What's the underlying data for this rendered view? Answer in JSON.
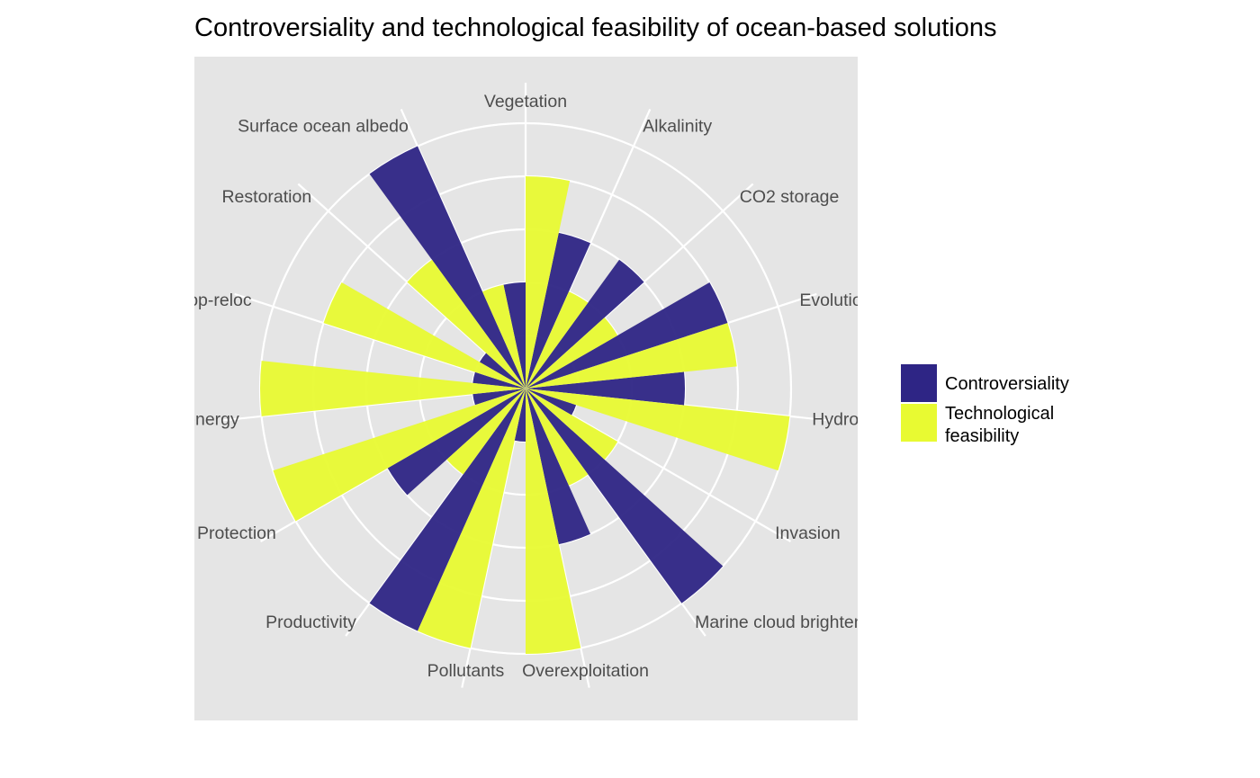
{
  "chart_data": {
    "type": "bar",
    "coord": "polar",
    "title": "Controversiality and technological feasibility of ocean-based solutions",
    "categories": [
      "Alkalinity",
      "CO2 storage",
      "Evolution",
      "Hydrology",
      "Invasion",
      "Marine cloud brightening",
      "Overexploitation",
      "Pollutants",
      "Productivity",
      "Protection",
      "Renewable energy",
      "Repop-reloc",
      "Restoration",
      "Surface ocean albedo",
      "Vegetation"
    ],
    "series": [
      {
        "name": "Controversiality",
        "color": "#2e2585",
        "values": [
          3,
          3,
          4,
          3,
          1,
          5,
          3,
          1,
          5,
          3,
          1,
          1,
          1,
          5,
          2
        ]
      },
      {
        "name": "Technological feasibility",
        "color": "#e8fa32",
        "values": [
          2,
          2,
          4,
          5,
          2,
          2,
          5,
          5,
          2,
          5,
          5,
          4,
          3,
          2,
          4
        ]
      }
    ],
    "ylim": [
      0,
      5
    ],
    "grid": true,
    "legend": {
      "position": "right",
      "entries": [
        "Controversiality",
        "Technological\nfeasibility"
      ]
    }
  }
}
